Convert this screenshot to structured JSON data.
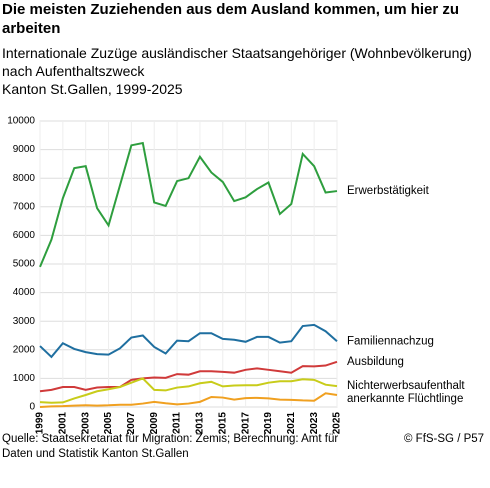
{
  "title": "Die meisten Zuziehenden aus dem Ausland kommen, um hier zu arbeiten",
  "subtitle": "Internationale Zuzüge ausländischer Staatsangehöriger (Wohnbevölkerung) nach Aufenthaltszweck",
  "subtitle2": "Kanton St.Gallen, 1999-2025",
  "source": "Quelle: Staatsekretariat für Migration: Zemis; Berechnung: Amt für Daten und Statistik Kanton St.Gallen",
  "credit": "© FfS-SG / P57",
  "chart_data": {
    "type": "line",
    "x": [
      1999,
      2000,
      2001,
      2002,
      2003,
      2004,
      2005,
      2006,
      2007,
      2008,
      2009,
      2010,
      2011,
      2012,
      2013,
      2014,
      2015,
      2016,
      2017,
      2018,
      2019,
      2020,
      2021,
      2022,
      2023,
      2024,
      2025
    ],
    "xlim": [
      1999,
      2025
    ],
    "xticks": [
      1999,
      2001,
      2003,
      2005,
      2007,
      2009,
      2011,
      2013,
      2015,
      2017,
      2019,
      2021,
      2023,
      2025
    ],
    "ylim": [
      0,
      10000
    ],
    "yticks": [
      0,
      1000,
      2000,
      3000,
      4000,
      5000,
      6000,
      7000,
      8000,
      9000,
      10000
    ],
    "grid": true,
    "series": [
      {
        "name": "Erwerbstätigkeit",
        "color": "#2e9e3e",
        "values": [
          4900,
          5850,
          7300,
          8350,
          8420,
          6950,
          6350,
          7750,
          9150,
          9230,
          7150,
          7030,
          7900,
          8000,
          8750,
          8200,
          7870,
          7200,
          7330,
          7620,
          7850,
          6750,
          7100,
          8850,
          8420,
          7500,
          7550
        ]
      },
      {
        "name": "Familiennachzug",
        "color": "#1f6fa0",
        "values": [
          2130,
          1750,
          2230,
          2030,
          1920,
          1850,
          1830,
          2050,
          2430,
          2500,
          2100,
          1870,
          2320,
          2300,
          2580,
          2580,
          2380,
          2350,
          2280,
          2450,
          2450,
          2250,
          2300,
          2830,
          2870,
          2650,
          2300
        ]
      },
      {
        "name": "Ausbildung",
        "color": "#d03a3a",
        "values": [
          550,
          600,
          700,
          700,
          600,
          680,
          700,
          700,
          950,
          1000,
          1030,
          1020,
          1150,
          1130,
          1250,
          1250,
          1230,
          1200,
          1300,
          1350,
          1300,
          1250,
          1200,
          1430,
          1420,
          1450,
          1580
        ]
      },
      {
        "name": "Nichterwerbsaufenthalt",
        "color": "#c8cc1a",
        "values": [
          170,
          150,
          160,
          300,
          420,
          550,
          620,
          700,
          850,
          1000,
          600,
          580,
          680,
          720,
          830,
          880,
          720,
          750,
          760,
          760,
          850,
          900,
          900,
          970,
          950,
          780,
          730
        ]
      },
      {
        "name": "anerkannte Flüchtlinge",
        "color": "#f0a020",
        "values": [
          0,
          20,
          30,
          50,
          60,
          50,
          60,
          80,
          80,
          120,
          180,
          130,
          90,
          120,
          180,
          350,
          330,
          260,
          310,
          320,
          300,
          260,
          250,
          230,
          220,
          480,
          420
        ]
      }
    ]
  }
}
